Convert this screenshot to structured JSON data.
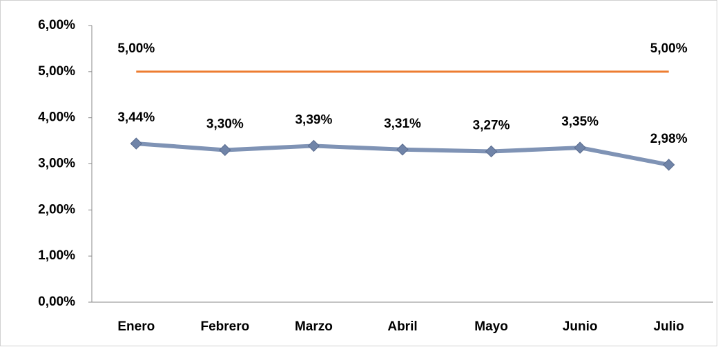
{
  "chart_data": {
    "type": "line",
    "categories": [
      "Enero",
      "Febrero",
      "Marzo",
      "Abril",
      "Mayo",
      "Junio",
      "Julio"
    ],
    "series": [
      {
        "color": "#ed7d31",
        "values": [
          5,
          5,
          5,
          5,
          5,
          5,
          5
        ],
        "value_labels": [
          "5,00%",
          null,
          null,
          null,
          null,
          null,
          "5,00%"
        ],
        "marker": false
      },
      {
        "color": "#7f93b5",
        "values": [
          3.44,
          3.3,
          3.39,
          3.31,
          3.27,
          3.35,
          2.98
        ],
        "value_labels": [
          "3,44%",
          "3,30%",
          "3,39%",
          "3,31%",
          "3,27%",
          "3,35%",
          "2,98%"
        ],
        "marker": true
      }
    ],
    "ylim": [
      0,
      6
    ],
    "yticks": [
      {
        "value": 0,
        "label": "0,00%"
      },
      {
        "value": 1,
        "label": "1,00%"
      },
      {
        "value": 2,
        "label": "2,00%"
      },
      {
        "value": 3,
        "label": "3,00%"
      },
      {
        "value": 4,
        "label": "4,00%"
      },
      {
        "value": 5,
        "label": "5,00%"
      },
      {
        "value": 6,
        "label": "6,00%"
      }
    ],
    "grid": false
  }
}
